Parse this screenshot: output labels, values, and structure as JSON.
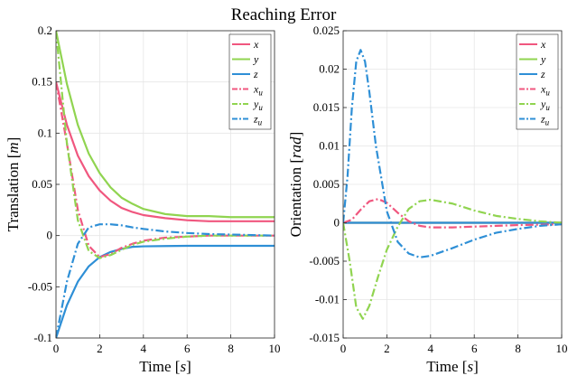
{
  "figure": {
    "title": "Reaching Error"
  },
  "chart_data": [
    {
      "type": "line",
      "xlabel": "Time [s]",
      "ylabel": "Translation [m]",
      "xlim": [
        0,
        10
      ],
      "ylim": [
        -0.1,
        0.2
      ],
      "xticks": [
        0,
        2,
        4,
        6,
        8,
        10
      ],
      "yticks": [
        -0.1,
        -0.05,
        0,
        0.05,
        0.1,
        0.15,
        0.2
      ],
      "xtick_labels": [
        "0",
        "2",
        "4",
        "6",
        "8",
        "10"
      ],
      "ytick_labels": [
        "-0.1",
        "-0.05",
        "0",
        "0.05",
        "0.1",
        "0.15",
        "0.2"
      ],
      "grid": true,
      "legend_position": "top-right",
      "series": [
        {
          "name": "x",
          "color": "#f0577f",
          "style": "solid",
          "x": [
            0,
            0.5,
            1,
            1.5,
            2,
            2.5,
            3,
            3.5,
            4,
            5,
            6,
            7,
            8,
            10
          ],
          "y": [
            0.15,
            0.108,
            0.078,
            0.058,
            0.044,
            0.034,
            0.027,
            0.023,
            0.02,
            0.017,
            0.015,
            0.014,
            0.014,
            0.014
          ]
        },
        {
          "name": "y",
          "color": "#90d450",
          "style": "solid",
          "x": [
            0,
            0.5,
            1,
            1.5,
            2,
            2.5,
            3,
            3.5,
            4,
            5,
            6,
            7,
            8,
            10
          ],
          "y": [
            0.2,
            0.148,
            0.108,
            0.08,
            0.061,
            0.047,
            0.037,
            0.031,
            0.026,
            0.021,
            0.019,
            0.019,
            0.018,
            0.018
          ]
        },
        {
          "name": "z",
          "color": "#2e8fd6",
          "style": "solid",
          "x": [
            0,
            0.5,
            1,
            1.5,
            2,
            2.5,
            3,
            3.5,
            4,
            5,
            6,
            7,
            8,
            10
          ],
          "y": [
            -0.1,
            -0.068,
            -0.045,
            -0.03,
            -0.021,
            -0.016,
            -0.013,
            -0.011,
            -0.0105,
            -0.0102,
            -0.01,
            -0.01,
            -0.01,
            -0.01
          ]
        },
        {
          "name": "x_u",
          "color": "#f0577f",
          "style": "dashdot",
          "x": [
            0,
            0.5,
            1,
            1.5,
            2,
            2.5,
            3,
            3.5,
            4,
            5,
            6,
            7,
            8,
            10
          ],
          "y": [
            0.15,
            0.09,
            0.025,
            -0.01,
            -0.021,
            -0.018,
            -0.012,
            -0.008,
            -0.005,
            -0.002,
            -0.001,
            0,
            0,
            0
          ]
        },
        {
          "name": "y_u",
          "color": "#90d450",
          "style": "dashdot",
          "x": [
            0,
            0.5,
            1,
            1.5,
            2,
            2.5,
            3,
            3.5,
            4,
            5,
            6,
            7,
            8,
            10
          ],
          "y": [
            0.2,
            0.09,
            0.015,
            -0.015,
            -0.022,
            -0.019,
            -0.014,
            -0.009,
            -0.006,
            -0.003,
            -0.001,
            0,
            0,
            0
          ]
        },
        {
          "name": "z_u",
          "color": "#2e8fd6",
          "style": "dashdot",
          "x": [
            0,
            0.5,
            1,
            1.5,
            2,
            2.5,
            3,
            3.5,
            4,
            5,
            6,
            7,
            8,
            10
          ],
          "y": [
            -0.1,
            -0.045,
            -0.008,
            0.008,
            0.011,
            0.011,
            0.01,
            0.008,
            0.0065,
            0.004,
            0.0025,
            0.0015,
            0.001,
            0
          ]
        }
      ]
    },
    {
      "type": "line",
      "xlabel": "Time [s]",
      "ylabel": "Orientation [rad]",
      "xlim": [
        0,
        10
      ],
      "ylim": [
        -0.015,
        0.025
      ],
      "xticks": [
        0,
        2,
        4,
        6,
        8,
        10
      ],
      "yticks": [
        -0.015,
        -0.01,
        -0.005,
        0,
        0.005,
        0.01,
        0.015,
        0.02,
        0.025
      ],
      "xtick_labels": [
        "0",
        "2",
        "4",
        "6",
        "8",
        "10"
      ],
      "ytick_labels": [
        "-0.015",
        "-0.01",
        "-0.005",
        "0",
        "0.005",
        "0.01",
        "0.015",
        "0.02",
        "0.025"
      ],
      "grid": true,
      "legend_position": "top-right",
      "series": [
        {
          "name": "x",
          "color": "#f0577f",
          "style": "solid",
          "x": [
            0,
            10
          ],
          "y": [
            0,
            0
          ]
        },
        {
          "name": "y",
          "color": "#90d450",
          "style": "solid",
          "x": [
            0,
            10
          ],
          "y": [
            0,
            0
          ]
        },
        {
          "name": "z",
          "color": "#2e8fd6",
          "style": "solid",
          "x": [
            0,
            10
          ],
          "y": [
            0,
            0
          ]
        },
        {
          "name": "x_u",
          "color": "#f0577f",
          "style": "dashdot",
          "x": [
            0,
            0.4,
            0.8,
            1.2,
            1.6,
            2,
            2.5,
            3,
            3.5,
            4,
            5,
            6,
            7,
            8,
            10
          ],
          "y": [
            0,
            0.0004,
            0.0017,
            0.0028,
            0.0031,
            0.0026,
            0.0013,
            0.0002,
            -0.0004,
            -0.0006,
            -0.0006,
            -0.0005,
            -0.0004,
            -0.0003,
            -0.0002
          ]
        },
        {
          "name": "y_u",
          "color": "#90d450",
          "style": "dashdot",
          "x": [
            0,
            0.3,
            0.6,
            0.9,
            1.2,
            1.6,
            2,
            2.5,
            3,
            3.5,
            4,
            5,
            6,
            7,
            8,
            9,
            10
          ],
          "y": [
            0,
            -0.005,
            -0.011,
            -0.0125,
            -0.0108,
            -0.007,
            -0.0035,
            -0.0005,
            0.0018,
            0.0028,
            0.003,
            0.0025,
            0.0016,
            0.0009,
            0.0005,
            0.0002,
            0
          ]
        },
        {
          "name": "z_u",
          "color": "#2e8fd6",
          "style": "dashdot",
          "x": [
            0,
            0.2,
            0.4,
            0.6,
            0.8,
            1,
            1.2,
            1.5,
            2,
            2.5,
            3,
            3.5,
            4,
            5,
            6,
            7,
            8,
            9,
            10
          ],
          "y": [
            0,
            0.006,
            0.015,
            0.021,
            0.0225,
            0.021,
            0.017,
            0.01,
            0.0015,
            -0.0025,
            -0.004,
            -0.0045,
            -0.0043,
            -0.0033,
            -0.0022,
            -0.0013,
            -0.0008,
            -0.0004,
            -0.0002
          ]
        }
      ]
    }
  ]
}
